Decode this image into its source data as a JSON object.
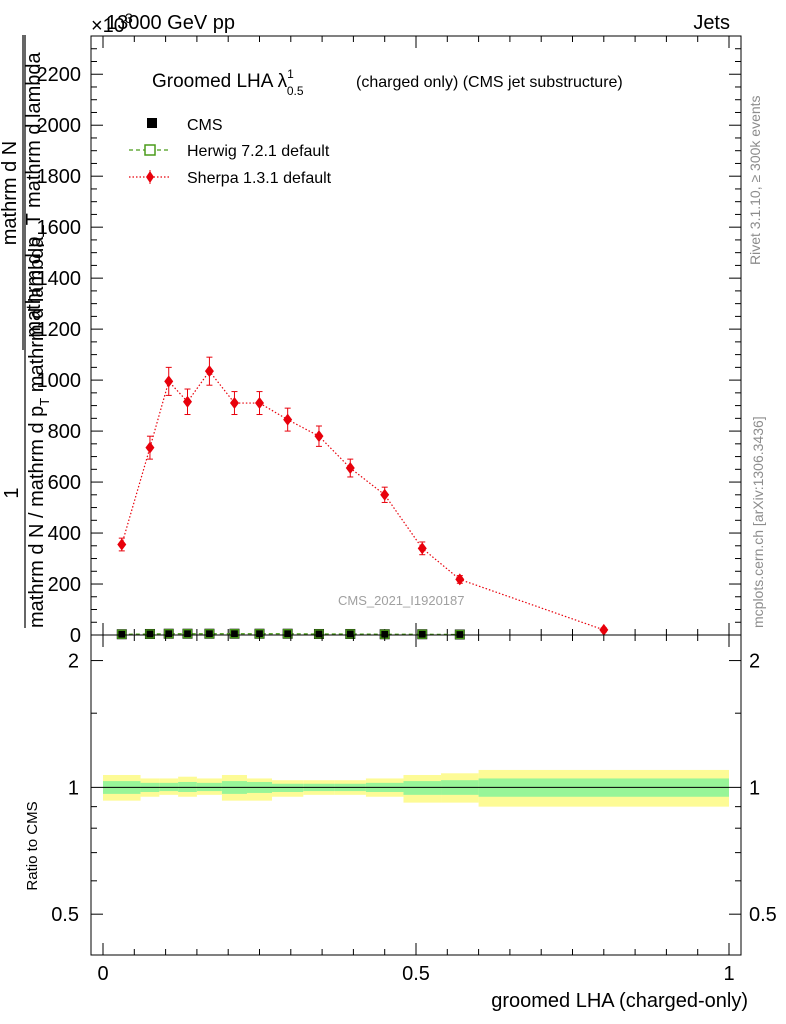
{
  "header": {
    "left": "13000 GeV pp",
    "right": "Jets",
    "exponent": "×10",
    "exponent_power": "3"
  },
  "side_labels": {
    "rivet": "Rivet 3.1.10, ≥ 300k events",
    "mcplots": "mcplots.cern.ch [arXiv:1306.3436]"
  },
  "watermark": "CMS_2021_I1920187",
  "chart_data": [
    {
      "panel": "main",
      "type": "scatter",
      "title_main": "Groomed LHA λ",
      "title_sup": "1",
      "title_sub": "0.5",
      "title_rest": "(charged only) (CMS jet substructure)",
      "ylabel_top": "1",
      "ylabel_num1": "mathrm d N / mathrm d p_T mathrm d lambda",
      "ylabel_den": "mathrm d N",
      "ylabel_den2": "mathrm d N / mathrm d p_T mathrm d lambda",
      "ylabel_frac_num": "mathrm d N",
      "ylabel_frac_den": "mathrm d p_T mathrm d lambda",
      "ylabel_prefix": "mathrm d N / mathrm d p",
      "ylabel_sub": "T",
      "ylabel_suffix": "mathrm d lambda",
      "xlim": [
        0,
        1
      ],
      "ylim": [
        0,
        2350
      ],
      "yticks": [
        0,
        200,
        400,
        600,
        800,
        1000,
        1200,
        1400,
        1600,
        1800,
        2000,
        2200
      ],
      "ytick_labels": [
        "0",
        "200",
        "400",
        "600",
        "800",
        "1000",
        "1200",
        "1400",
        "1600",
        "1800",
        "2000",
        "2200"
      ],
      "legend_position": "top-left",
      "series": [
        {
          "name": "CMS",
          "color": "#000000",
          "marker": "square",
          "x": [
            0.03,
            0.075,
            0.105,
            0.135,
            0.17,
            0.21,
            0.25,
            0.295,
            0.345,
            0.395,
            0.45,
            0.51,
            0.57
          ],
          "y": [
            3,
            4,
            5,
            5,
            5,
            5,
            5,
            5,
            4,
            4,
            3,
            3,
            2
          ]
        },
        {
          "name": "Herwig 7.2.1 default",
          "color": "#4a9c1a",
          "marker": "open-square",
          "x": [
            0.03,
            0.075,
            0.105,
            0.135,
            0.17,
            0.21,
            0.25,
            0.295,
            0.345,
            0.395,
            0.45,
            0.51,
            0.57
          ],
          "y": [
            3,
            4,
            5,
            5,
            5,
            5,
            5,
            5,
            4,
            4,
            3,
            3,
            2
          ]
        },
        {
          "name": "Sherpa 1.3.1 default",
          "color": "#e8000b",
          "marker": "diamond",
          "x": [
            0.03,
            0.075,
            0.105,
            0.135,
            0.17,
            0.21,
            0.25,
            0.295,
            0.345,
            0.395,
            0.45,
            0.51,
            0.57,
            0.8
          ],
          "y": [
            355,
            735,
            995,
            915,
            1035,
            910,
            910,
            845,
            780,
            655,
            550,
            340,
            218,
            20
          ],
          "yerr": [
            25,
            45,
            55,
            50,
            55,
            45,
            45,
            45,
            40,
            35,
            30,
            25,
            15,
            8
          ]
        }
      ]
    },
    {
      "panel": "ratio",
      "type": "area",
      "ylabel": "Ratio to CMS",
      "xlabel": "groomed LHA (charged-only)",
      "xlim": [
        0,
        1
      ],
      "ylim": [
        0.4,
        2.3
      ],
      "scale": "log",
      "yticks": [
        0.5,
        1,
        2
      ],
      "ytick_labels": [
        "0.5",
        "1",
        "2"
      ],
      "xticks": [
        0,
        0.5,
        1
      ],
      "xtick_labels": [
        "0",
        "0.5",
        "1"
      ],
      "bins": [
        0,
        0.06,
        0.09,
        0.12,
        0.15,
        0.19,
        0.23,
        0.27,
        0.32,
        0.37,
        0.42,
        0.48,
        0.54,
        0.6,
        1.0
      ],
      "band_outer_low": [
        0.93,
        0.95,
        0.96,
        0.95,
        0.96,
        0.93,
        0.93,
        0.95,
        0.96,
        0.96,
        0.95,
        0.92,
        0.92,
        0.9
      ],
      "band_outer_high": [
        1.07,
        1.05,
        1.05,
        1.06,
        1.05,
        1.07,
        1.05,
        1.04,
        1.04,
        1.04,
        1.05,
        1.07,
        1.08,
        1.1
      ],
      "band_inner_low": [
        0.965,
        0.975,
        0.98,
        0.975,
        0.98,
        0.965,
        0.97,
        0.975,
        0.98,
        0.98,
        0.975,
        0.96,
        0.96,
        0.95
      ],
      "band_inner_high": [
        1.035,
        1.025,
        1.025,
        1.03,
        1.025,
        1.035,
        1.03,
        1.02,
        1.02,
        1.02,
        1.025,
        1.035,
        1.04,
        1.05
      ],
      "outer_color": "#fdfb96",
      "inner_color": "#98f598",
      "reference": 1
    }
  ]
}
